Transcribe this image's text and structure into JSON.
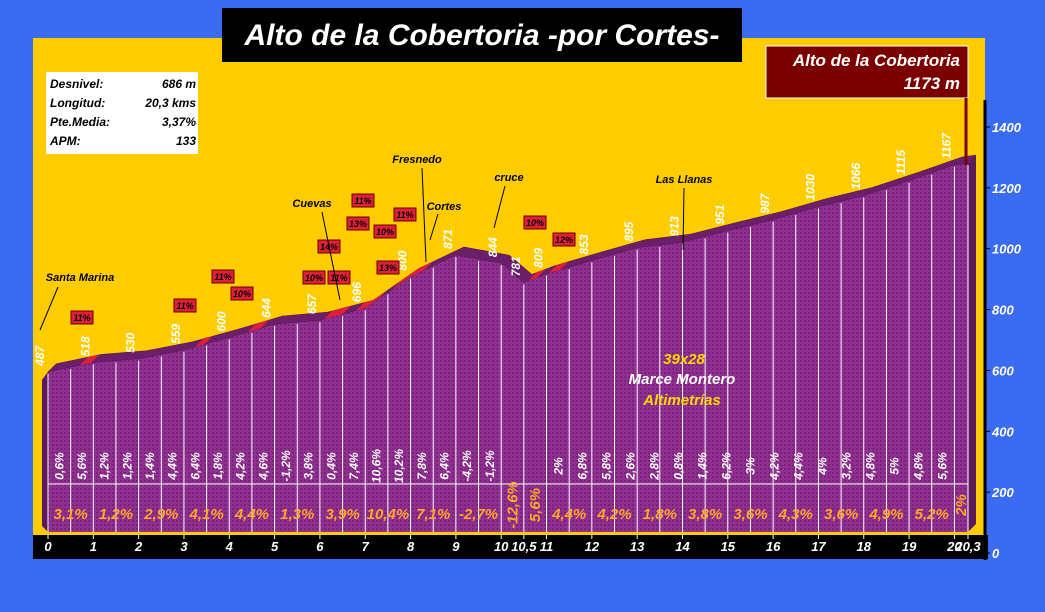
{
  "chart_data": {
    "type": "area",
    "title": "Alto de la Cobertoria -por Cortes-",
    "summit_name": "Alto de la Cobertoria",
    "summit_elevation": "1173 m",
    "x": [
      0,
      1,
      2,
      3,
      4,
      5,
      6,
      7,
      8,
      9,
      10,
      10.5,
      11,
      12,
      13,
      14,
      15,
      16,
      17,
      18,
      19,
      20,
      20.3
    ],
    "values": [
      487,
      518,
      530,
      559,
      600,
      644,
      657,
      696,
      800,
      871,
      844,
      781,
      809,
      853,
      895,
      913,
      951,
      987,
      1030,
      1066,
      1115,
      1167,
      1173
    ],
    "xticks": [
      0,
      1,
      2,
      3,
      4,
      5,
      6,
      7,
      8,
      9,
      10,
      {
        "value": 10.5,
        "label": "10,5"
      },
      11,
      12,
      13,
      14,
      15,
      16,
      17,
      18,
      19,
      20,
      {
        "value": 20.3,
        "label": "20,3"
      }
    ],
    "ylim": [
      0,
      1400
    ],
    "yticks": [
      0,
      200,
      400,
      600,
      800,
      1000,
      1200,
      1400
    ],
    "color": "#993399",
    "half_km_gradients_a": [
      "0,6%",
      "5,6%",
      "1,2%",
      "1,2%",
      "1,4%",
      "4,4%",
      "6,4%",
      "1,8%",
      "4,2%",
      "4,6%",
      "-1,2%",
      "3,8%",
      "0,4%",
      "7,4%",
      "10,6%",
      "10,2%",
      "7,8%",
      "6,4%",
      "-4,2%",
      "-1,2%"
    ],
    "half_km_gradients_b": [
      "2%",
      "6,8%",
      "5,8%",
      "2,6%",
      "2,8%",
      "0,8%",
      "1,4%",
      "6,2%",
      "3%",
      "4,2%",
      "4,4%",
      "4%",
      "3,2%",
      "4,8%",
      "5%",
      "4,8%",
      "5,6%"
    ],
    "km_gradients": [
      "3,1%",
      "1,2%",
      "2,9%",
      "4,1%",
      "4,4%",
      "1,3%",
      "3,9%",
      "10,4%",
      "7,1%",
      "-2,7%",
      "-12,6%",
      "5,6%",
      "4,4%",
      "4,2%",
      "1,8%",
      "3,8%",
      "3,6%",
      "4,3%",
      "3,6%",
      "4,9%",
      "5,2%",
      "2%"
    ],
    "steep_labels": [
      "11%",
      "11%",
      "11%",
      "10%",
      "10%",
      "14%",
      "11%",
      "13%",
      "11%",
      "10%",
      "13%",
      "11%",
      "10%",
      "12%"
    ],
    "places": [
      "Santa Marina",
      "Cuevas",
      "Fresnedo",
      "Cortes",
      "cruce",
      "Las Llanas"
    ],
    "stats": [
      {
        "label": "Desnivel:",
        "value": "686 m"
      },
      {
        "label": "Longitud:",
        "value": "20,3 kms"
      },
      {
        "label": "Pte.Media:",
        "value": "3,37%"
      },
      {
        "label": "APM:",
        "value": "133"
      }
    ],
    "credits": [
      "39x28",
      "Marce Montero",
      "Altimetrías"
    ]
  }
}
